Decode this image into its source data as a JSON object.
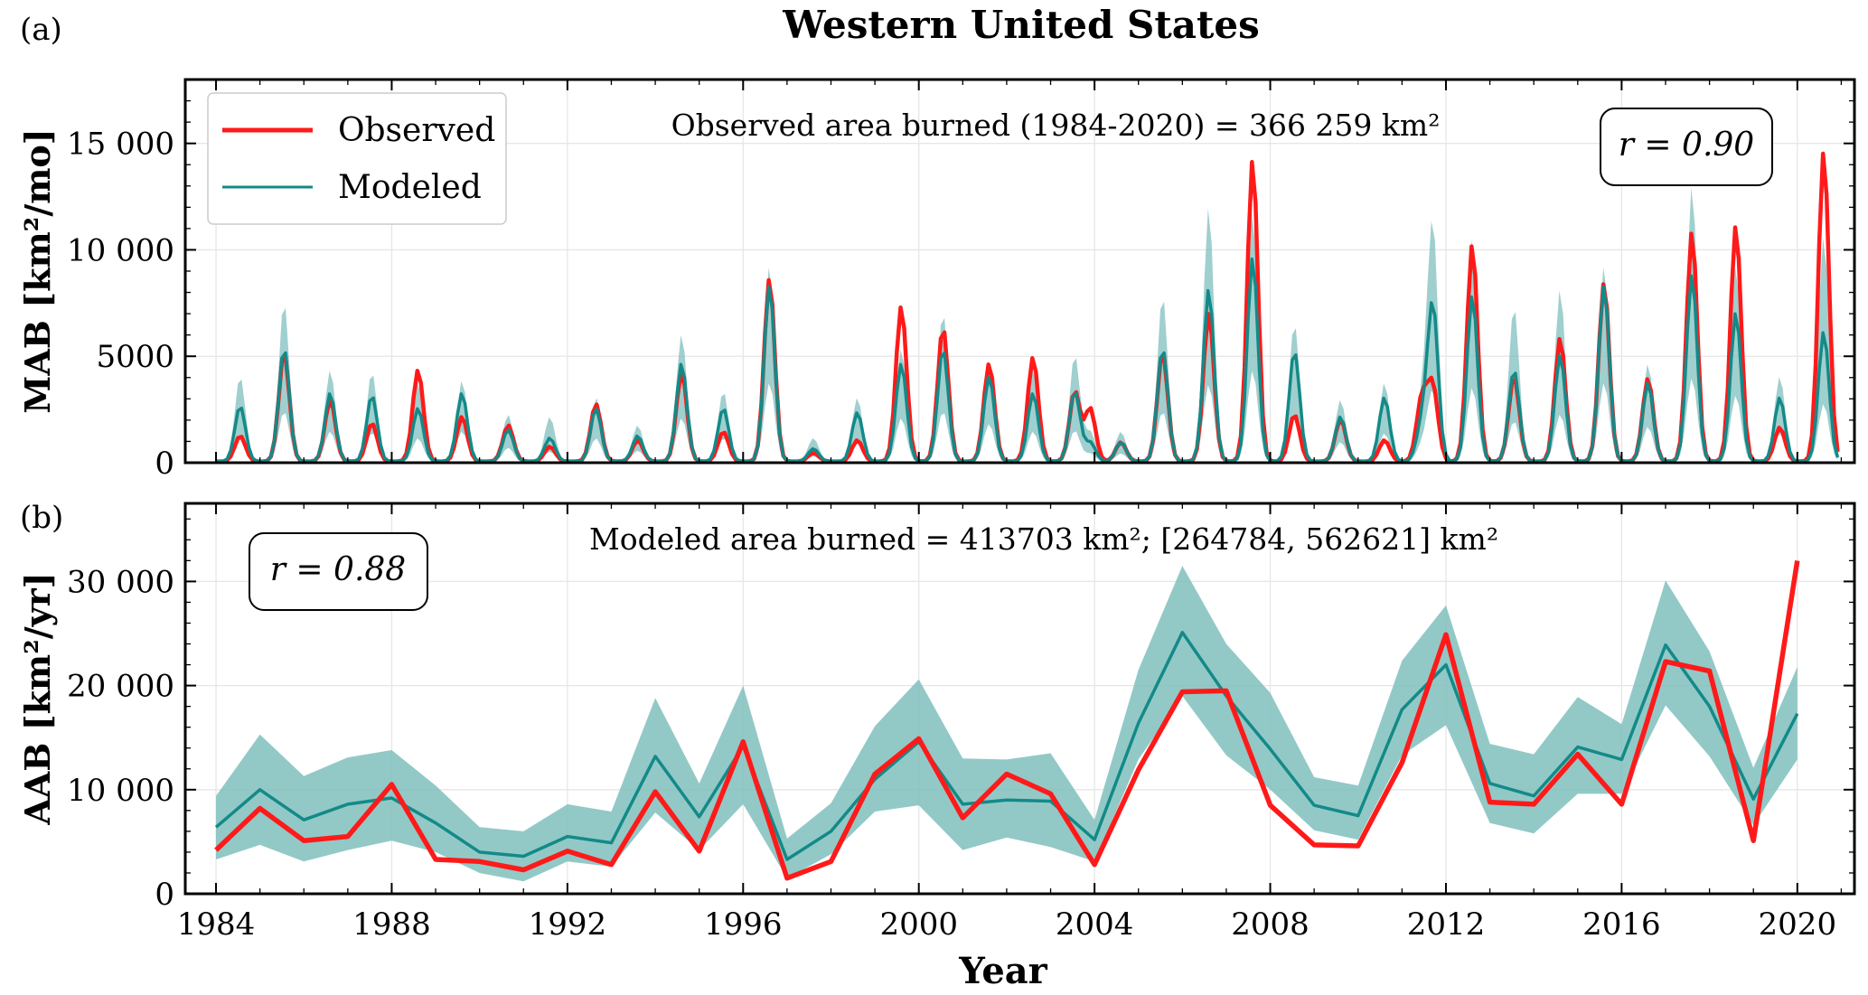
{
  "figure": {
    "title": "Western United States",
    "xlabel": "Year",
    "x_ticks": [
      "1984",
      "1988",
      "1992",
      "1996",
      "2000",
      "2004",
      "2008",
      "2012",
      "2016",
      "2020"
    ]
  },
  "colors": {
    "observed": "#ff1a1a",
    "modeled": "#138a88",
    "band": "#7fbfbd"
  },
  "chart_data": [
    {
      "panel_label": "(a)",
      "type": "line",
      "ylabel": "MAB [km²/mo]",
      "yticks": [
        "0",
        "5000",
        "10 000",
        "15 000"
      ],
      "ylim": [
        0,
        18000
      ],
      "xlim": [
        1983.3,
        2021.3
      ],
      "annotation": "Observed area burned (1984-2020) = 366 259 km²",
      "stat_box": "r = 0.90",
      "legend": {
        "location": "top-left",
        "entries": [
          "Observed",
          "Modeled"
        ]
      },
      "grid": true,
      "peaks": [
        {
          "t": 1984.55,
          "obs": 1200,
          "mod": 2600,
          "hi": 4000
        },
        {
          "t": 1985.55,
          "obs": 5100,
          "mod": 5300,
          "hi": 7500
        },
        {
          "t": 1986.6,
          "obs": 2900,
          "mod": 3200,
          "hi": 4300
        },
        {
          "t": 1987.55,
          "obs": 1800,
          "mod": 3100,
          "hi": 4200
        },
        {
          "t": 1988.6,
          "obs": 4300,
          "mod": 2500,
          "hi": 3700
        },
        {
          "t": 1989.6,
          "obs": 2100,
          "mod": 3200,
          "hi": 3800
        },
        {
          "t": 1990.65,
          "obs": 1700,
          "mod": 1500,
          "hi": 2200
        },
        {
          "t": 1991.6,
          "obs": 700,
          "mod": 1100,
          "hi": 2100
        },
        {
          "t": 1992.65,
          "obs": 2700,
          "mod": 2500,
          "hi": 3000
        },
        {
          "t": 1993.6,
          "obs": 1000,
          "mod": 1200,
          "hi": 1700
        },
        {
          "t": 1994.6,
          "obs": 4200,
          "mod": 4600,
          "hi": 6000
        },
        {
          "t": 1995.55,
          "obs": 1400,
          "mod": 2500,
          "hi": 3300
        },
        {
          "t": 1996.6,
          "obs": 8600,
          "mod": 8300,
          "hi": 9200
        },
        {
          "t": 1997.6,
          "obs": 400,
          "mod": 600,
          "hi": 1100
        },
        {
          "t": 1998.6,
          "obs": 1000,
          "mod": 2300,
          "hi": 3000
        },
        {
          "t": 1999.6,
          "obs": 7300,
          "mod": 4600,
          "hi": 5300
        },
        {
          "t": 2000.55,
          "obs": 6300,
          "mod": 5300,
          "hi": 7000
        },
        {
          "t": 2001.6,
          "obs": 4600,
          "mod": 4000,
          "hi": 4600
        },
        {
          "t": 2002.6,
          "obs": 4900,
          "mod": 3200,
          "hi": 4400
        },
        {
          "t": 2003.55,
          "obs": 3300,
          "mod": 3300,
          "hi": 5000
        },
        {
          "t": 2003.9,
          "obs": 2500,
          "mod": 900,
          "hi": 1400
        },
        {
          "t": 2004.6,
          "obs": 900,
          "mod": 900,
          "hi": 1400
        },
        {
          "t": 2005.55,
          "obs": 5100,
          "mod": 5300,
          "hi": 7800
        },
        {
          "t": 2006.6,
          "obs": 7000,
          "mod": 8100,
          "hi": 12000
        },
        {
          "t": 2007.6,
          "obs": 14200,
          "mod": 9600,
          "hi": 11700
        },
        {
          "t": 2008.55,
          "obs": 2200,
          "mod": 5200,
          "hi": 6500
        },
        {
          "t": 2009.6,
          "obs": 2000,
          "mod": 2100,
          "hi": 2900
        },
        {
          "t": 2010.6,
          "obs": 1000,
          "mod": 3000,
          "hi": 3700
        },
        {
          "t": 2011.45,
          "obs": 2900,
          "mod": 1700,
          "hi": 2700
        },
        {
          "t": 2011.7,
          "obs": 3500,
          "mod": 7400,
          "hi": 11200
        },
        {
          "t": 2012.6,
          "obs": 10200,
          "mod": 7800,
          "hi": 10500
        },
        {
          "t": 2013.55,
          "obs": 4000,
          "mod": 4300,
          "hi": 7300
        },
        {
          "t": 2014.6,
          "obs": 5800,
          "mod": 5000,
          "hi": 8100
        },
        {
          "t": 2015.6,
          "obs": 8400,
          "mod": 8300,
          "hi": 9200
        },
        {
          "t": 2016.6,
          "obs": 3900,
          "mod": 3700,
          "hi": 4600
        },
        {
          "t": 2017.6,
          "obs": 10800,
          "mod": 8800,
          "hi": 13000
        },
        {
          "t": 2018.6,
          "obs": 11100,
          "mod": 7000,
          "hi": 9200
        },
        {
          "t": 2019.6,
          "obs": 1600,
          "mod": 3000,
          "hi": 4000
        },
        {
          "t": 2020.6,
          "obs": 14600,
          "mod": 6100,
          "hi": 10600
        }
      ]
    },
    {
      "panel_label": "(b)",
      "type": "line",
      "ylabel": "AAB [km²/yr]",
      "yticks": [
        "0",
        "10 000",
        "20 000",
        "30 000"
      ],
      "ylim": [
        0,
        37500
      ],
      "xlim": [
        1983.3,
        2021.3
      ],
      "annotation": "Modeled area burned = 413703 km²; [264784, 562621] km²",
      "stat_box": "r = 0.88",
      "grid": true,
      "x": [
        1984,
        1985,
        1986,
        1987,
        1988,
        1989,
        1990,
        1991,
        1992,
        1993,
        1994,
        1995,
        1996,
        1997,
        1998,
        1999,
        2000,
        2001,
        2002,
        2003,
        2004,
        2005,
        2006,
        2007,
        2008,
        2009,
        2010,
        2011,
        2012,
        2013,
        2014,
        2015,
        2016,
        2017,
        2018,
        2019,
        2020
      ],
      "series": [
        {
          "name": "Observed",
          "values": [
            4200,
            8200,
            5100,
            5500,
            10500,
            3300,
            3100,
            2300,
            4100,
            2800,
            9800,
            4100,
            14600,
            1500,
            3100,
            11500,
            14900,
            7300,
            11500,
            9600,
            2800,
            11900,
            19400,
            19500,
            8500,
            4700,
            4600,
            12600,
            24900,
            8800,
            8600,
            13400,
            8600,
            22300,
            21400,
            5100,
            32000
          ]
        },
        {
          "name": "Modeled",
          "values": [
            6400,
            10000,
            7100,
            8600,
            9200,
            6800,
            4000,
            3600,
            5500,
            4900,
            13200,
            7400,
            14200,
            3300,
            6000,
            11000,
            14600,
            8600,
            9000,
            8900,
            5200,
            16400,
            25100,
            19000,
            13900,
            8500,
            7500,
            17700,
            22000,
            10600,
            9400,
            14100,
            12900,
            23900,
            18000,
            9100,
            17300
          ]
        },
        {
          "name": "Modeled range low",
          "values": [
            3300,
            4700,
            3100,
            4200,
            5100,
            4000,
            2000,
            1200,
            3100,
            2600,
            7800,
            4200,
            8600,
            1500,
            3800,
            7900,
            8500,
            4200,
            5400,
            4500,
            3100,
            12900,
            19000,
            13300,
            10000,
            6100,
            5200,
            13300,
            16200,
            6800,
            5800,
            9600,
            9600,
            18100,
            13200,
            6600,
            12900
          ]
        },
        {
          "name": "Modeled range high",
          "values": [
            9400,
            15300,
            11300,
            13100,
            13800,
            10400,
            6400,
            6000,
            8600,
            7900,
            18800,
            10600,
            20000,
            5300,
            8700,
            16100,
            20600,
            13000,
            12900,
            13500,
            7100,
            21500,
            31500,
            24000,
            19300,
            11200,
            10400,
            22400,
            27700,
            14400,
            13400,
            18900,
            16300,
            30100,
            23300,
            12100,
            21800
          ]
        }
      ]
    }
  ]
}
